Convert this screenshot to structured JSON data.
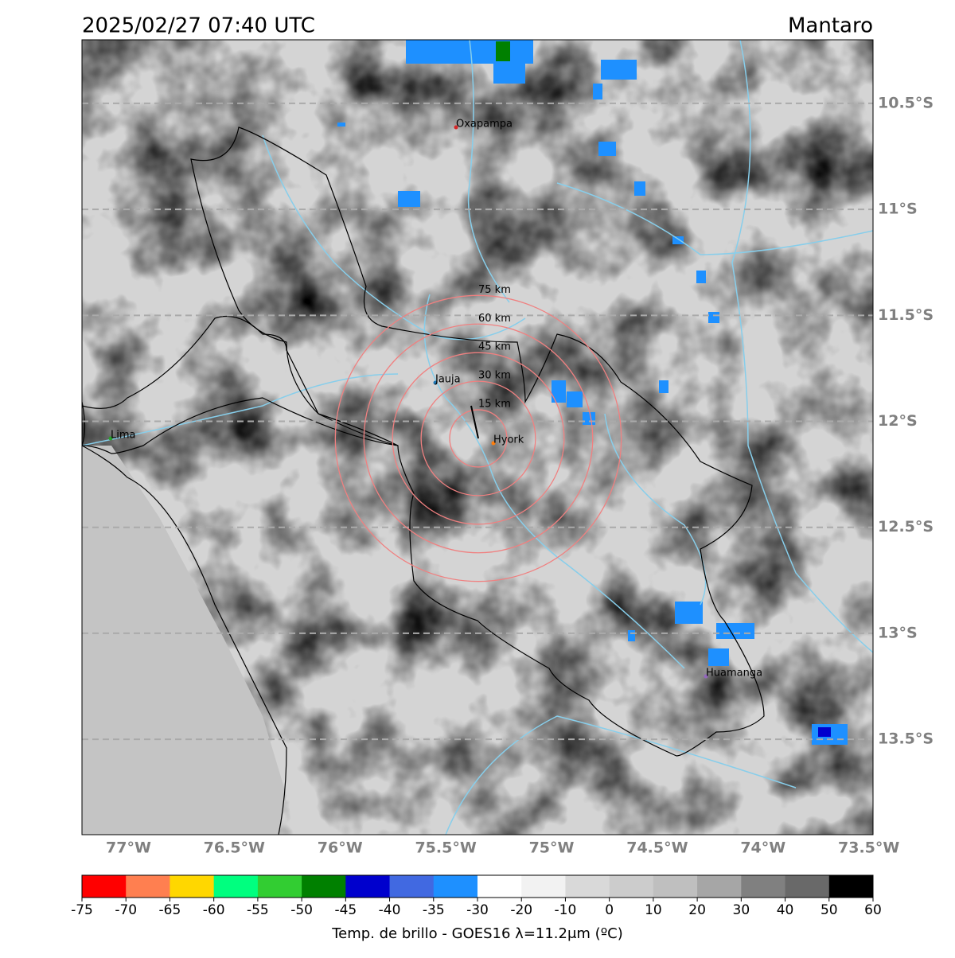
{
  "header": {
    "title": "2025/02/27 07:40 UTC",
    "region": "Mantaro"
  },
  "map": {
    "xlim": [
      -77.22,
      -73.48
    ],
    "ylim": [
      -13.95,
      -10.2
    ],
    "lat_lines": [
      {
        "value": -10.5,
        "label": "10.5°S"
      },
      {
        "value": -11,
        "label": "11°S"
      },
      {
        "value": -11.5,
        "label": "11.5°S"
      },
      {
        "value": -12,
        "label": "12°S"
      },
      {
        "value": -12.5,
        "label": "12.5°S"
      },
      {
        "value": -13,
        "label": "13°S"
      },
      {
        "value": -13.5,
        "label": "13.5°S"
      }
    ],
    "lon_ticks": [
      {
        "value": -77,
        "label": "77°W"
      },
      {
        "value": -76.5,
        "label": "76.5°W"
      },
      {
        "value": -76,
        "label": "76°W"
      },
      {
        "value": -75.5,
        "label": "75.5°W"
      },
      {
        "value": -75,
        "label": "75°W"
      },
      {
        "value": -74.5,
        "label": "74.5°W"
      },
      {
        "value": -74,
        "label": "74°W"
      },
      {
        "value": -73.5,
        "label": "73.5°W"
      }
    ],
    "rings": [
      {
        "value": 15,
        "label": "15 km"
      },
      {
        "value": 30,
        "label": "30 km"
      },
      {
        "value": 45,
        "label": "45 km"
      },
      {
        "value": 60,
        "label": "60 km"
      },
      {
        "value": 75,
        "label": "75 km"
      }
    ],
    "cities": [
      "Oxapampa",
      "Jauja",
      "Lima",
      "Hyork",
      "Huamanga"
    ]
  },
  "colorbar": {
    "ticks": [
      -75,
      -70,
      -65,
      -60,
      -55,
      -50,
      -45,
      -40,
      -35,
      -30,
      -20,
      -10,
      0,
      10,
      20,
      30,
      40,
      50,
      60
    ],
    "colors": [
      "#ff0000",
      "#ff7f50",
      "#ffd700",
      "#00ff7f",
      "#32cd32",
      "#008000",
      "#0000cd",
      "#4169e1",
      "#1e90ff",
      "#ffffff",
      "#f2f2f2",
      "#d9d9d9",
      "#cccccc",
      "#bfbfbf",
      "#a6a6a6",
      "#808080",
      "#696969",
      "#000000"
    ],
    "label": "Temp. de brillo - GOES16 λ=11.2μm (ºC)"
  }
}
